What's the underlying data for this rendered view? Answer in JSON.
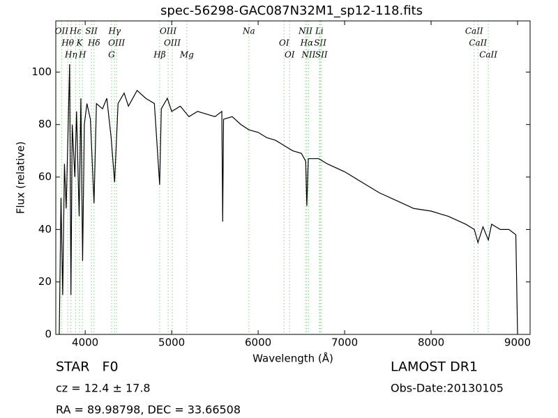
{
  "chart_data": {
    "type": "line",
    "title": "spec-56298-GAC087N32M1_sp12-118.fits",
    "x_label": "Wavelength (Å)",
    "y_label": "Flux (relative)",
    "xlim": [
      3660,
      9145
    ],
    "ylim": [
      0,
      119.5
    ],
    "xticks": [
      4000,
      5000,
      6000,
      7000,
      8000,
      9000
    ],
    "yticks": [
      0,
      20,
      40,
      60,
      80,
      100
    ],
    "grid": false,
    "line_color": "#000000",
    "marker_color": "#7fcf7f",
    "x": [
      3700,
      3720,
      3740,
      3760,
      3780,
      3800,
      3820,
      3835,
      3850,
      3880,
      3900,
      3930,
      3950,
      3970,
      3990,
      4020,
      4060,
      4102,
      4130,
      4200,
      4250,
      4300,
      4340,
      4380,
      4450,
      4500,
      4600,
      4700,
      4800,
      4861,
      4880,
      4950,
      5000,
      5100,
      5200,
      5300,
      5400,
      5500,
      5580,
      5590,
      5600,
      5700,
      5800,
      5893,
      6000,
      6100,
      6200,
      6300,
      6400,
      6500,
      6550,
      6563,
      6580,
      6700,
      6800,
      7000,
      7200,
      7400,
      7600,
      7800,
      8000,
      8200,
      8400,
      8500,
      8542,
      8600,
      8662,
      8700,
      8800,
      8900,
      8980,
      9000
    ],
    "series": [
      {
        "name": "flux",
        "values": [
          0,
          52,
          15,
          65,
          48,
          75,
          103,
          15,
          80,
          60,
          85,
          45,
          90,
          28,
          80,
          88,
          82,
          50,
          88,
          86,
          90,
          75,
          58,
          88,
          92,
          87,
          93,
          90,
          88,
          57,
          86,
          90,
          85,
          87,
          83,
          85,
          84,
          83,
          85,
          43,
          82,
          83,
          80,
          78,
          77,
          75,
          74,
          72,
          70,
          69,
          66,
          49,
          67,
          67,
          65,
          62,
          58,
          54,
          51,
          48,
          47,
          45,
          42,
          40,
          35,
          41,
          36,
          42,
          40,
          40,
          38,
          0
        ]
      }
    ],
    "lines": [
      {
        "label": "OII",
        "x": 3727
      },
      {
        "label": "Hθ",
        "x": 3798
      },
      {
        "label": "Hη",
        "x": 3835
      },
      {
        "label": "Hε",
        "x": 3889
      },
      {
        "label": "K",
        "x": 3934
      },
      {
        "label": "H",
        "x": 3968
      },
      {
        "label": "SII",
        "x": 4072
      },
      {
        "label": "Hδ",
        "x": 4102
      },
      {
        "label": "G",
        "x": 4305
      },
      {
        "label": "Hγ",
        "x": 4340
      },
      {
        "label": "OIII",
        "x": 4363
      },
      {
        "label": "Hβ",
        "x": 4861
      },
      {
        "label": "OIII",
        "x": 4959
      },
      {
        "label": "OIII",
        "x": 5007
      },
      {
        "label": "Mg",
        "x": 5175
      },
      {
        "label": "Na",
        "x": 5893
      },
      {
        "label": "OI",
        "x": 6300
      },
      {
        "label": "OI",
        "x": 6364
      },
      {
        "label": "NII",
        "x": 6548
      },
      {
        "label": "Hα",
        "x": 6563
      },
      {
        "label": "NII",
        "x": 6583
      },
      {
        "label": "Li",
        "x": 6708
      },
      {
        "label": "SII",
        "x": 6717
      },
      {
        "label": "SII",
        "x": 6731
      },
      {
        "label": "CaII",
        "x": 8498
      },
      {
        "label": "CaII",
        "x": 8542
      },
      {
        "label": "CaII",
        "x": 8662
      }
    ],
    "object_class": "STAR   F0",
    "cz": "cz = 12.4  ± 17.8",
    "coords": "RA = 89.98798, DEC = 33.66508",
    "survey": "LAMOST DR1",
    "obs_date": "Obs-Date:20130105"
  }
}
